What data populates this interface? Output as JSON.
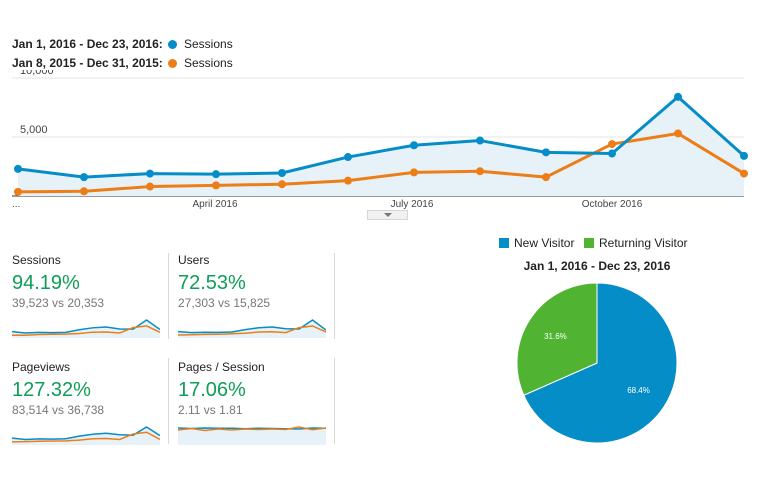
{
  "legend": [
    {
      "range": "Jan 1, 2016 - Dec 23, 2016:",
      "series": "Sessions",
      "color": "#058dc7"
    },
    {
      "range": "Jan 8, 2015 - Dec 31, 2015:",
      "series": "Sessions",
      "color": "#ed7e17"
    }
  ],
  "chart_data": [
    {
      "type": "line",
      "ylim": [
        0,
        10000
      ],
      "y_ticks": [
        "10,000",
        "5,000"
      ],
      "x_tick_labels": [
        "...",
        "April 2016",
        "July 2016",
        "October 2016"
      ],
      "series": [
        {
          "name": "Jan 1, 2016 - Dec 23, 2016: Sessions",
          "color": "#058dc7",
          "values": [
            2300,
            1600,
            1900,
            1850,
            1950,
            3300,
            4300,
            4700,
            3700,
            3600,
            8400,
            3400
          ]
        },
        {
          "name": "Jan 8, 2015 - Dec 31, 2015: Sessions",
          "color": "#ed7e17",
          "values": [
            350,
            400,
            800,
            900,
            1000,
            1300,
            2000,
            2100,
            1600,
            4400,
            5300,
            1900
          ]
        }
      ]
    },
    {
      "type": "pie",
      "title": "Jan 1, 2016 - Dec 23, 2016",
      "labels": [
        "New Visitor",
        "Returning Visitor"
      ],
      "values": [
        68.4,
        31.6
      ],
      "value_labels": [
        "68.4%",
        "31.6%"
      ],
      "colors": [
        "#058dc7",
        "#50b432"
      ],
      "legend_position": "top"
    }
  ],
  "metrics": [
    {
      "title": "Sessions",
      "value": "94.19%",
      "compare": "39,523 vs 20,353",
      "spark_blue": [
        23,
        16,
        19,
        18,
        19,
        33,
        43,
        47,
        37,
        36,
        84,
        34
      ],
      "spark_orange": [
        4,
        4,
        8,
        9,
        10,
        13,
        20,
        21,
        16,
        44,
        53,
        19
      ]
    },
    {
      "title": "Users",
      "value": "72.53%",
      "compare": "27,303 vs 15,825",
      "spark_blue": [
        22,
        17,
        19,
        18,
        20,
        32,
        41,
        45,
        36,
        35,
        80,
        30
      ],
      "spark_orange": [
        5,
        6,
        8,
        9,
        11,
        14,
        20,
        21,
        17,
        42,
        50,
        20
      ]
    },
    {
      "title": "Pageviews",
      "value": "127.32%",
      "compare": "83,514 vs 36,738",
      "spark_blue": [
        25,
        18,
        21,
        20,
        22,
        35,
        45,
        50,
        42,
        40,
        82,
        38
      ],
      "spark_orange": [
        6,
        7,
        9,
        10,
        11,
        15,
        22,
        23,
        18,
        46,
        55,
        18
      ]
    },
    {
      "title": "Pages / Session",
      "value": "17.06%",
      "compare": "2.11 vs 1.81",
      "spark_blue": [
        60,
        58,
        60,
        59,
        59,
        57,
        59,
        58,
        57,
        56,
        60,
        59
      ],
      "spark_orange": [
        52,
        58,
        50,
        56,
        52,
        56,
        54,
        56,
        54,
        64,
        53,
        60
      ]
    }
  ]
}
